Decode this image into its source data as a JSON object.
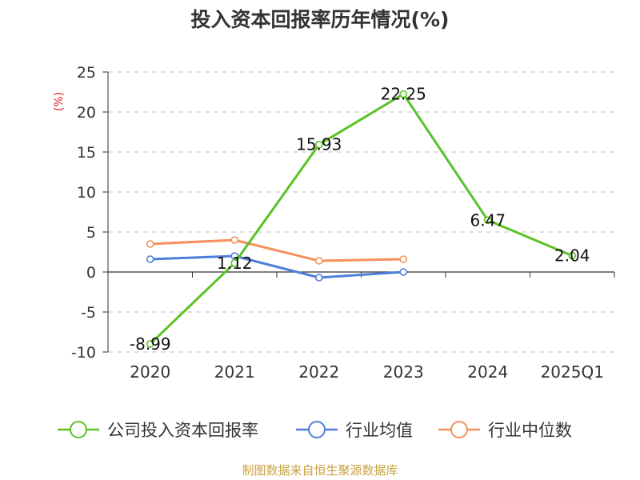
{
  "chart_data": {
    "type": "line",
    "title": "投入资本回报率历年情况(%)",
    "ylabel": "(%)",
    "xlabel": "",
    "categories": [
      "2020",
      "2021",
      "2022",
      "2023",
      "2024",
      "2025Q1"
    ],
    "ylim": [
      -10,
      25
    ],
    "yticks": [
      "25",
      "20",
      "15",
      "10",
      "5",
      "0",
      "-5",
      "-10"
    ],
    "ytick_values": [
      25,
      20,
      15,
      10,
      5,
      0,
      -5,
      -10
    ],
    "grid": true,
    "legend_position": "bottom",
    "series": [
      {
        "name": "公司投入资本回报率",
        "color": "#5bc225",
        "values": [
          -8.99,
          1.12,
          15.93,
          22.25,
          6.47,
          2.04
        ],
        "labels": [
          "-8.99",
          "1.12",
          "15.93",
          "22.25",
          "6.47",
          "2.04"
        ]
      },
      {
        "name": "行业均值",
        "color": "#4f7fd9",
        "values": [
          1.6,
          2.0,
          -0.7,
          0.0,
          null,
          null
        ],
        "labels": []
      },
      {
        "name": "行业中位数",
        "color": "#f5905a",
        "values": [
          3.5,
          4.0,
          1.4,
          1.6,
          null,
          null
        ],
        "labels": []
      }
    ],
    "source": "制图数据来自恒生聚源数据库"
  }
}
